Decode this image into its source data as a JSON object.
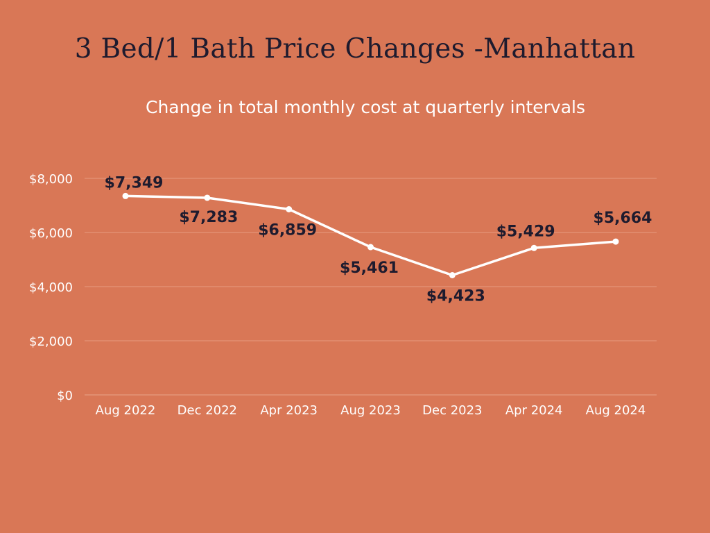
{
  "chart_data": {
    "type": "line",
    "title": "3 Bed/1 Bath Price Changes -Manhattan",
    "subtitle": "Change in total monthly cost at quarterly intervals",
    "xlabel": "",
    "ylabel": "",
    "categories": [
      "Aug 2022",
      "Dec 2022",
      "Apr 2023",
      "Aug 2023",
      "Dec 2023",
      "Apr 2024",
      "Aug 2024"
    ],
    "series": [
      {
        "values": [
          7349,
          7283,
          6859,
          5461,
          4423,
          5429,
          5664
        ],
        "labels": [
          "$7,349",
          "$7,283",
          "$6,859",
          "$5,461",
          "$4,423",
          "$5,429",
          "$5,664"
        ]
      }
    ],
    "ylim": [
      0,
      8000
    ],
    "yticks": [
      0,
      2000,
      4000,
      6000,
      8000
    ],
    "ytick_labels": [
      "$0",
      "$2,000",
      "$4,000",
      "$6,000",
      "$8,000"
    ],
    "grid": true,
    "legend": "none",
    "colors": {
      "background": "#D97756",
      "line": "#FFFFFF",
      "gridline": "#E89B80",
      "title": "#1E1B2E",
      "data_label": "#1E1B2E",
      "tick_label": "#FFFFFF"
    }
  }
}
